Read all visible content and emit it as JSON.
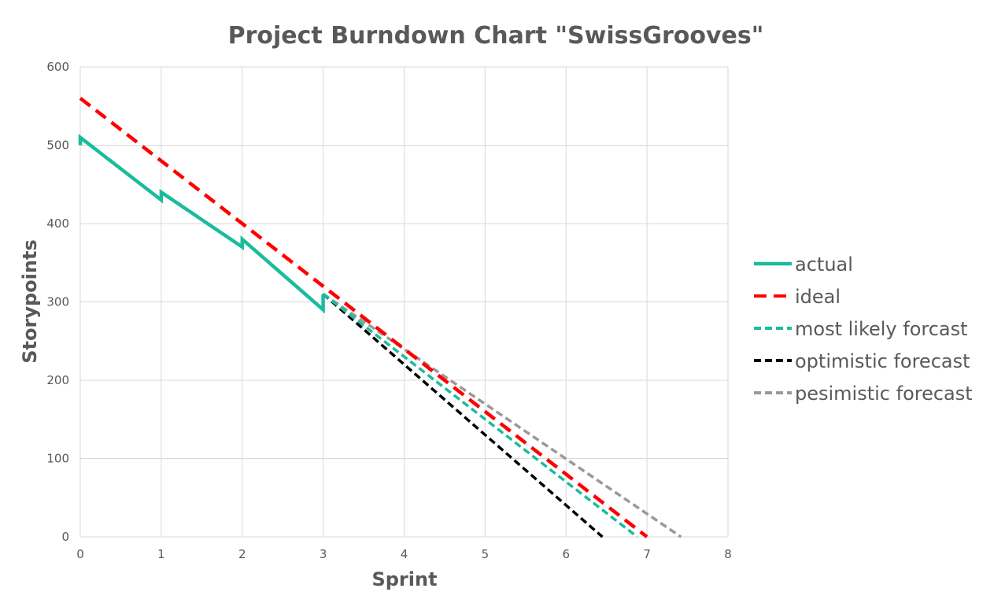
{
  "chart_data": {
    "type": "line",
    "title": "Project Burndown Chart \"SwissGrooves\"",
    "xlabel": "Sprint",
    "ylabel": "Storypoints",
    "xlim": [
      0,
      8
    ],
    "ylim": [
      0,
      600
    ],
    "x_ticks": [
      "0",
      "1",
      "2",
      "3",
      "4",
      "5",
      "6",
      "7",
      "8"
    ],
    "y_ticks": [
      "0",
      "100",
      "200",
      "300",
      "400",
      "500",
      "600"
    ],
    "grid": true,
    "legend_position": "right",
    "series": [
      {
        "name": "actual",
        "color": "#1ABC9C",
        "style": "solid",
        "points": [
          [
            0,
            500
          ],
          [
            0,
            510
          ],
          [
            1,
            430
          ],
          [
            1,
            440
          ],
          [
            2,
            370
          ],
          [
            2,
            380
          ],
          [
            3,
            290
          ],
          [
            3,
            310
          ]
        ]
      },
      {
        "name": "ideal",
        "color": "#FF0000",
        "style": "dash",
        "points": [
          [
            0,
            560
          ],
          [
            7,
            0
          ]
        ]
      },
      {
        "name": "most likely forcast",
        "color": "#1ABC9C",
        "style": "dash",
        "points": [
          [
            3,
            310
          ],
          [
            6.88,
            0
          ]
        ]
      },
      {
        "name": "optimistic forecast",
        "color": "#000000",
        "style": "dash",
        "points": [
          [
            3,
            310
          ],
          [
            6.45,
            0
          ]
        ]
      },
      {
        "name": "pesimistic forecast",
        "color": "#999999",
        "style": "dash",
        "points": [
          [
            3,
            310
          ],
          [
            7.42,
            0
          ]
        ]
      }
    ]
  }
}
